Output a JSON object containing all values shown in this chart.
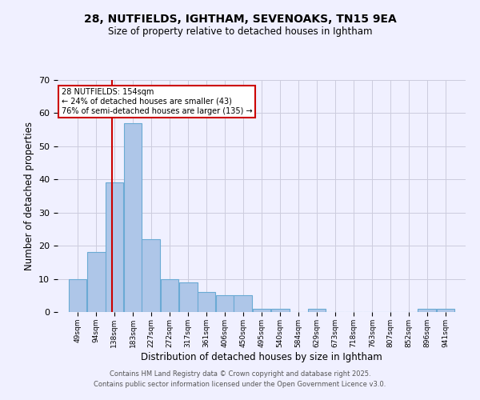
{
  "title1": "28, NUTFIELDS, IGHTHAM, SEVENOAKS, TN15 9EA",
  "title2": "Size of property relative to detached houses in Ightham",
  "xlabel": "Distribution of detached houses by size in Ightham",
  "ylabel": "Number of detached properties",
  "bar_left_edges": [
    49,
    94,
    138,
    183,
    227,
    272,
    317,
    361,
    406,
    450,
    495,
    540,
    584,
    629,
    673,
    718,
    763,
    807,
    852,
    896,
    941
  ],
  "bar_heights": [
    10,
    18,
    39,
    57,
    22,
    10,
    9,
    6,
    5,
    5,
    1,
    1,
    0,
    1,
    0,
    0,
    0,
    0,
    0,
    1,
    1
  ],
  "bin_width": 44,
  "bar_color": "#aec6e8",
  "bar_edge_color": "#6aaad4",
  "ylim": [
    0,
    70
  ],
  "yticks": [
    0,
    10,
    20,
    30,
    40,
    50,
    60,
    70
  ],
  "red_line_x": 154,
  "red_line_color": "#cc0000",
  "annotation_box_text": "28 NUTFIELDS: 154sqm\n← 24% of detached houses are smaller (43)\n76% of semi-detached houses are larger (135) →",
  "grid_color": "#ccccdd",
  "background_color": "#f0f0ff",
  "tick_labels": [
    "49sqm",
    "94sqm",
    "138sqm",
    "183sqm",
    "227sqm",
    "272sqm",
    "317sqm",
    "361sqm",
    "406sqm",
    "450sqm",
    "495sqm",
    "540sqm",
    "584sqm",
    "629sqm",
    "673sqm",
    "718sqm",
    "763sqm",
    "807sqm",
    "852sqm",
    "896sqm",
    "941sqm"
  ],
  "footer1": "Contains HM Land Registry data © Crown copyright and database right 2025.",
  "footer2": "Contains public sector information licensed under the Open Government Licence v3.0."
}
